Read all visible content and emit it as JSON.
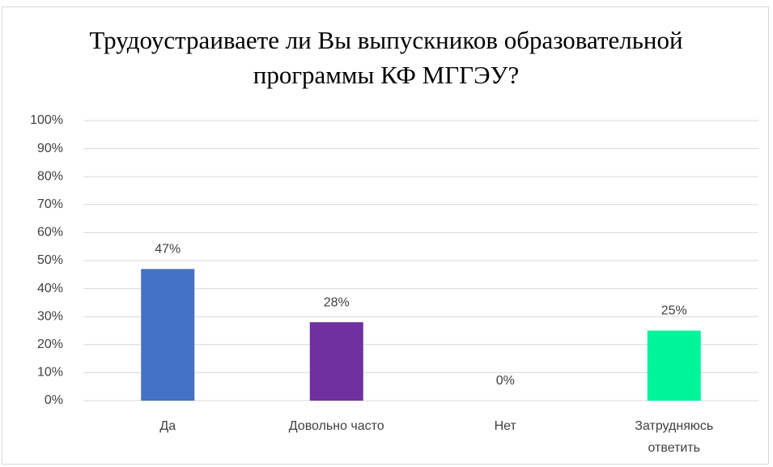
{
  "chart_data": {
    "type": "bar",
    "title": "Трудоустраиваете ли Вы выпускников образовательной программы КФ МГГЭУ?",
    "categories": [
      "Да",
      "Довольно часто",
      "Нет",
      "Затрудняюсь ответить"
    ],
    "values": [
      47,
      28,
      0,
      25
    ],
    "value_labels": [
      "47%",
      "28%",
      "0%",
      "25%"
    ],
    "colors": [
      "#4472c4",
      "#7030a0",
      "#a5a5a5",
      "#00f59b"
    ],
    "ylim": [
      0,
      100
    ],
    "yticks": [
      {
        "value": 0,
        "label": "0%"
      },
      {
        "value": 10,
        "label": "10%"
      },
      {
        "value": 20,
        "label": "20%"
      },
      {
        "value": 30,
        "label": "30%"
      },
      {
        "value": 40,
        "label": "40%"
      },
      {
        "value": 50,
        "label": "50%"
      },
      {
        "value": 60,
        "label": "60%"
      },
      {
        "value": 70,
        "label": "70%"
      },
      {
        "value": 80,
        "label": "80%"
      },
      {
        "value": 90,
        "label": "90%"
      },
      {
        "value": 100,
        "label": "100%"
      }
    ],
    "grid": true
  }
}
